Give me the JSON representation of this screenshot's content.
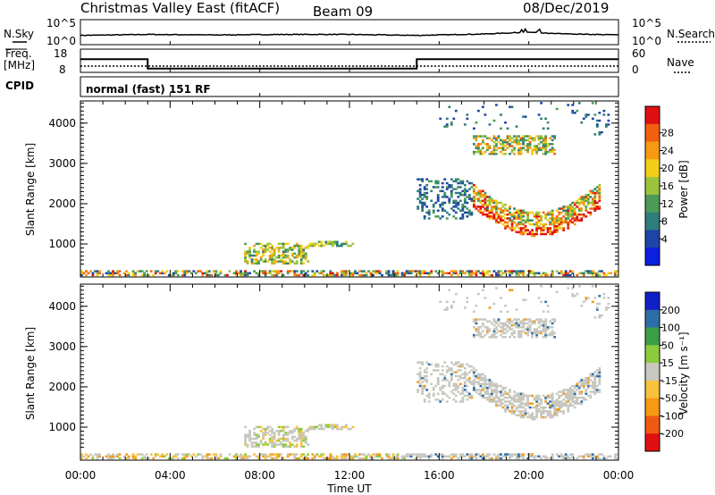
{
  "header": {
    "station": "Christmas Valley East (fitACF)",
    "beam": "Beam 09",
    "date": "08/Dec/2019"
  },
  "aux": {
    "nsky_label": "N.Sky",
    "nsearch_label": "N.Search",
    "noise_ticks": [
      "10^5",
      "10^0"
    ],
    "freq_label_line1": "Freq.",
    "freq_label_line2": "[MHz]",
    "freq_ticks": [
      "18",
      "8"
    ],
    "nave_label": "Nave",
    "nave_ticks": [
      "60",
      "0"
    ],
    "cpid_label": "CPID",
    "cpid_text": "normal (fast) 151 RF"
  },
  "colors": {
    "power_scale": [
      "#0b1fe0",
      "#1e44a8",
      "#2f7d7a",
      "#4d9a56",
      "#9bc43c",
      "#f2cf16",
      "#f59a12",
      "#f06010",
      "#e01010"
    ],
    "velocity_scale": [
      "#e01010",
      "#f05a10",
      "#f59a12",
      "#f7c23c",
      "#c8c8c0",
      "#8ccc3c",
      "#3c9e46",
      "#2e6ea8",
      "#1020c8"
    ]
  },
  "chart_data": [
    {
      "type": "line",
      "name": "noise",
      "series_labels": [
        "N.Sky",
        "N.Search"
      ],
      "ylabel": "",
      "x": [
        "00:00",
        "03:00",
        "06:00",
        "09:00",
        "12:00",
        "15:00",
        "18:00",
        "20:00",
        "21:00",
        "24:00"
      ],
      "series": [
        {
          "name": "N.Sky",
          "values": [
            2.0,
            2.2,
            2.1,
            2.2,
            2.2,
            2.0,
            2.3,
            2.7,
            2.4,
            2.1
          ]
        },
        {
          "name": "N.Search",
          "values": [
            1.9,
            2.1,
            2.0,
            2.1,
            2.1,
            1.9,
            2.2,
            2.5,
            2.3,
            2.0
          ]
        }
      ]
    },
    {
      "type": "line",
      "name": "frequency-nave",
      "segments_hours": [
        [
          0,
          3
        ],
        [
          3,
          15
        ],
        [
          15,
          24
        ]
      ],
      "freq_mhz": [
        15,
        10,
        15
      ],
      "nave": [
        20,
        20,
        20
      ]
    },
    {
      "type": "heatmap",
      "name": "power",
      "ylabel": "Slant Range [km]",
      "colorbar_label": "Power [dB]",
      "colorbar_ticks": [
        "28",
        "24",
        "20",
        "16",
        "12",
        "8",
        "4"
      ],
      "yticks": [
        "4000",
        "3000",
        "2000",
        "1000"
      ],
      "ylim": [
        180,
        4550
      ],
      "xlim_hours": [
        0,
        24
      ],
      "zlim": [
        0,
        32
      ]
    },
    {
      "type": "heatmap",
      "name": "velocity",
      "ylabel": "Slant Range [km]",
      "colorbar_label": "Velocity [m s⁻¹]",
      "colorbar_ticks": [
        "200",
        "100",
        "50",
        "15",
        "-15",
        "-50",
        "-100",
        "-200"
      ],
      "yticks": [
        "4000",
        "3000",
        "2000",
        "1000"
      ],
      "ylim": [
        180,
        4550
      ],
      "xlim_hours": [
        0,
        24
      ]
    }
  ],
  "xaxis": {
    "ticks": [
      "00:00",
      "04:00",
      "08:00",
      "12:00",
      "16:00",
      "20:00",
      "00:00"
    ],
    "label": "Time UT"
  }
}
